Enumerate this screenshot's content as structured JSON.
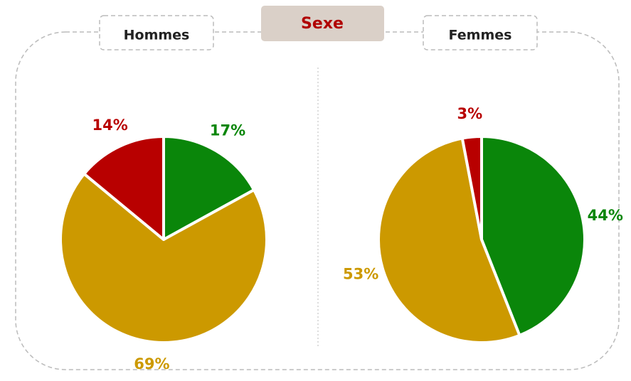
{
  "title": "Sexe",
  "chart_data": [
    {
      "type": "pie",
      "title": "Hommes",
      "values": [
        17,
        69,
        14
      ],
      "value_labels": [
        "17%",
        "69%",
        "14%"
      ],
      "colors": [
        "#0a860a",
        "#cc9900",
        "#b80000"
      ]
    },
    {
      "type": "pie",
      "title": "Femmes",
      "values": [
        44,
        53,
        3
      ],
      "value_labels": [
        "44%",
        "53%",
        "3%"
      ],
      "colors": [
        "#0a860a",
        "#cc9900",
        "#b80000"
      ]
    }
  ]
}
